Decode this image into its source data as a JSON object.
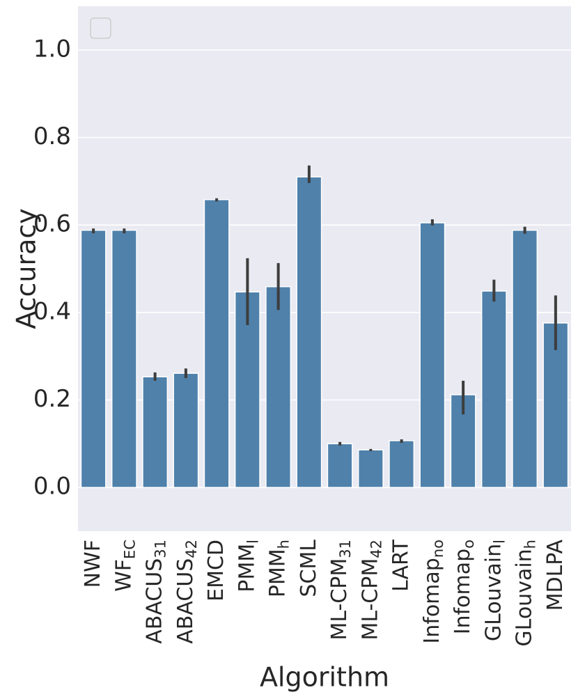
{
  "chart_data": {
    "type": "bar",
    "x_label": "Algorithm",
    "y_label": "Accuracy",
    "categories": [
      "NWF",
      "WF_EC",
      "ABACUS_31",
      "ABACUS_42",
      "EMCD",
      "PMM_l",
      "PMM_h",
      "SCML",
      "ML-CPM_31",
      "ML-CPM_42",
      "LART",
      "Infomap_no",
      "Infomap_o",
      "GLouvain_l",
      "GLouvain_h",
      "MDLPA"
    ],
    "values": [
      0.588,
      0.588,
      0.253,
      0.261,
      0.658,
      0.447,
      0.459,
      0.71,
      0.1,
      0.086,
      0.107,
      0.605,
      0.212,
      0.449,
      0.588,
      0.376
    ],
    "ci": [
      [
        0.581,
        0.592
      ],
      [
        0.581,
        0.592
      ],
      [
        0.244,
        0.263
      ],
      [
        0.25,
        0.272
      ],
      [
        0.654,
        0.661
      ],
      [
        0.371,
        0.524
      ],
      [
        0.406,
        0.513
      ],
      [
        0.696,
        0.736
      ],
      [
        0.096,
        0.104
      ],
      [
        0.083,
        0.088
      ],
      [
        0.102,
        0.11
      ],
      [
        0.599,
        0.613
      ],
      [
        0.167,
        0.244
      ],
      [
        0.425,
        0.475
      ],
      [
        0.58,
        0.596
      ],
      [
        0.314,
        0.439
      ]
    ],
    "color": "#4f81ab",
    "ylim": [
      -0.1,
      1.1
    ],
    "yticks": [
      {
        "value": 0,
        "label": "0.0"
      },
      0.2,
      0.4,
      0.6,
      0.8,
      {
        "value": 1,
        "label": "1.0"
      }
    ],
    "grid": true
  }
}
